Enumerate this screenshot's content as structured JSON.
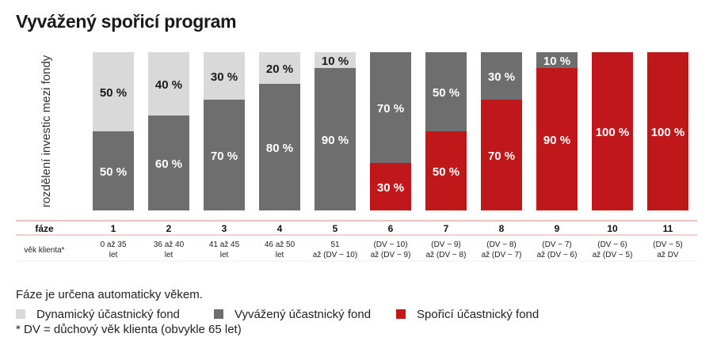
{
  "title": "Vyvážený spořicí program",
  "chart_data": {
    "type": "bar",
    "stacked": true,
    "ylabel": "rozdělení investic mezi fondy",
    "ylim": [
      0,
      100
    ],
    "grid": false,
    "categories": [
      "1",
      "2",
      "3",
      "4",
      "5",
      "6",
      "7",
      "8",
      "9",
      "10",
      "11"
    ],
    "series": [
      {
        "name": "Spořicí účastnický fond",
        "color": "#c0181a",
        "text_color": "#ffffff",
        "values": [
          0,
          0,
          0,
          0,
          0,
          30,
          50,
          70,
          90,
          100,
          100
        ]
      },
      {
        "name": "Vyvážený účastnický fond",
        "color": "#6e6e6e",
        "text_color": "#ffffff",
        "values": [
          50,
          60,
          70,
          80,
          90,
          70,
          50,
          30,
          10,
          0,
          0
        ]
      },
      {
        "name": "Dynamický účastnický fond",
        "color": "#d9d9d9",
        "text_color": "#1a1a1a",
        "values": [
          50,
          40,
          30,
          20,
          10,
          0,
          0,
          0,
          0,
          0,
          0
        ]
      }
    ],
    "label_suffix": " %"
  },
  "table": {
    "phase_header": "fáze",
    "age_header": "věk klienta*",
    "ages": [
      [
        "0 až 35",
        "let"
      ],
      [
        "36 až 40",
        "let"
      ],
      [
        "41 až 45",
        "let"
      ],
      [
        "46 až 50",
        "let"
      ],
      [
        "51",
        "až (DV − 10)"
      ],
      [
        "(DV − 10)",
        "až (DV − 9)"
      ],
      [
        "(DV − 9)",
        "až (DV − 8)"
      ],
      [
        "(DV − 8)",
        "až (DV − 7)"
      ],
      [
        "(DV − 7)",
        "až (DV − 6)"
      ],
      [
        "(DV − 6)",
        "až (DV − 5)"
      ],
      [
        "(DV − 5)",
        "až DV"
      ]
    ]
  },
  "notes": {
    "phase_note": "Fáze je určena automaticky věkem.",
    "footnote": "* DV = důchový věk klienta (obvykle 65 let)"
  },
  "legend": {
    "dynamic_label": "Dynamický účastnický fond",
    "dynamic_color": "#d9d9d9",
    "balanced_label": "Vyvážený účastnický fond",
    "balanced_color": "#6e6e6e",
    "saving_label": "Spořicí účastnický fond",
    "saving_color": "#c0181a"
  }
}
